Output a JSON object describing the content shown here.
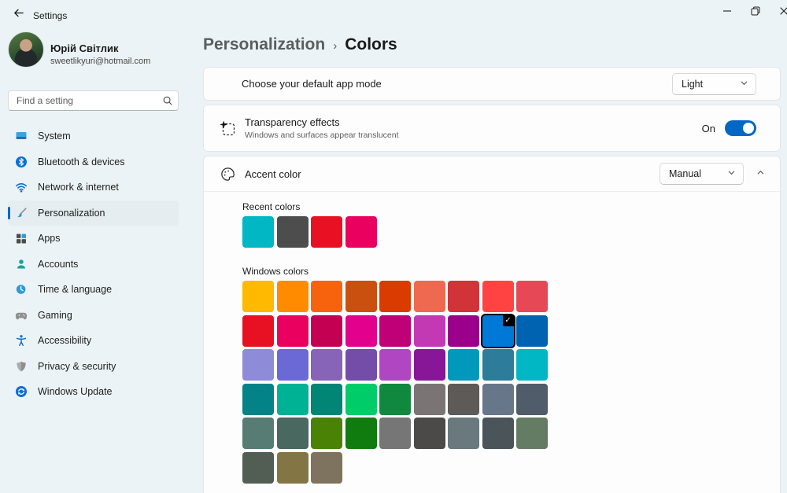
{
  "theme": {
    "accent": "#0067C4",
    "window_bg": "#ECF3F6",
    "card_bg": "#FDFDFE",
    "toggle_on_color": "#0067C4",
    "selected_swatch_outline": "#000000"
  },
  "titlebar": {
    "title": "Settings"
  },
  "profile": {
    "name": "Юрій Світлик",
    "email": "sweetlikyuri@hotmail.com"
  },
  "search": {
    "placeholder": "Find a setting"
  },
  "sidebar": {
    "active": "Personalization",
    "items": [
      {
        "label": "System",
        "icon": "system-icon"
      },
      {
        "label": "Bluetooth & devices",
        "icon": "bluetooth-icon"
      },
      {
        "label": "Network & internet",
        "icon": "network-icon"
      },
      {
        "label": "Personalization",
        "icon": "personalization-icon"
      },
      {
        "label": "Apps",
        "icon": "apps-icon"
      },
      {
        "label": "Accounts",
        "icon": "accounts-icon"
      },
      {
        "label": "Time & language",
        "icon": "time-language-icon"
      },
      {
        "label": "Gaming",
        "icon": "gaming-icon"
      },
      {
        "label": "Accessibility",
        "icon": "accessibility-icon"
      },
      {
        "label": "Privacy & security",
        "icon": "privacy-icon"
      },
      {
        "label": "Windows Update",
        "icon": "windows-update-icon"
      }
    ]
  },
  "breadcrumb": {
    "parent": "Personalization",
    "separator": "›",
    "current": "Colors"
  },
  "rows": {
    "app_mode": {
      "label": "Choose your default app mode",
      "value": "Light"
    },
    "transparency": {
      "title": "Transparency effects",
      "subtitle": "Windows and surfaces appear translucent",
      "toggle_label": "On",
      "toggle_state": "on"
    },
    "accent_color": {
      "title": "Accent color",
      "value": "Manual"
    }
  },
  "colors": {
    "recent": {
      "label": "Recent colors",
      "swatches": [
        "#00B7C3",
        "#4D4D4D",
        "#E81123",
        "#EA005E"
      ]
    },
    "windows": {
      "label": "Windows colors",
      "selected_index": 16,
      "selected_badge": "✓",
      "swatches": [
        "#FFB900",
        "#FF8C00",
        "#F7630C",
        "#CA5010",
        "#DA3B01",
        "#EF6950",
        "#D13438",
        "#FF4343",
        "#E74856",
        "#E81123",
        "#EA005E",
        "#C30052",
        "#E3008C",
        "#BF0077",
        "#C239B3",
        "#9A0089",
        "#0078D7",
        "#0063B1",
        "#8E8CD8",
        "#6B69D6",
        "#8764B8",
        "#744DA9",
        "#B146C2",
        "#881798",
        "#0099BC",
        "#2D7D9A",
        "#00B7C3",
        "#038387",
        "#00B294",
        "#018574",
        "#00CC6A",
        "#10893E",
        "#7A7574",
        "#5D5A58",
        "#68768A",
        "#515C6B",
        "#567C73",
        "#486860",
        "#498205",
        "#107C10",
        "#767676",
        "#4C4A48",
        "#69797E",
        "#4A5459",
        "#647C64",
        "#525E54",
        "#847545",
        "#7E735F"
      ]
    }
  }
}
